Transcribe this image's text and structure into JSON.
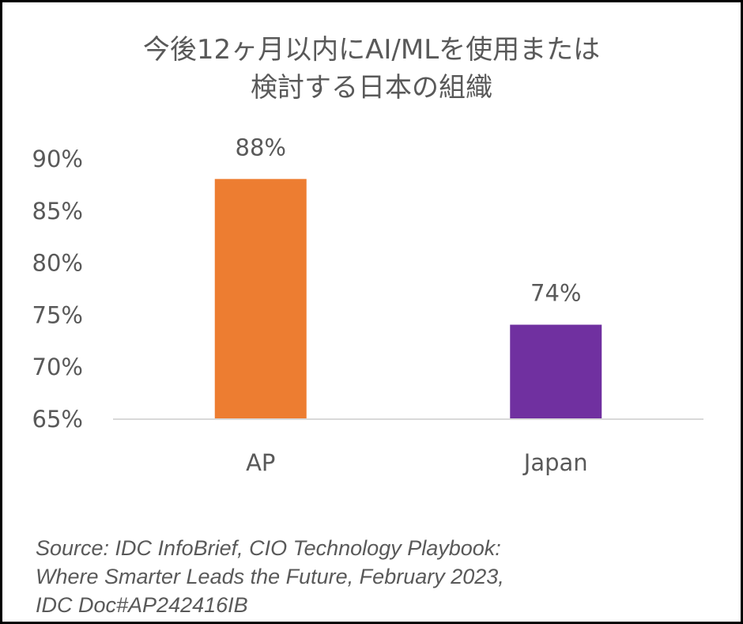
{
  "chart_data": {
    "type": "bar",
    "title_lines": [
      "今後12ヶ月以内にAI/MLを使用または",
      "検討する日本の組織"
    ],
    "categories": [
      "AP",
      "Japan"
    ],
    "values": [
      88,
      74
    ],
    "data_labels": [
      "88%",
      "74%"
    ],
    "colors": [
      "#ED7D31",
      "#7030A0"
    ],
    "ylim": [
      65,
      90
    ],
    "yticks": [
      65,
      70,
      75,
      80,
      85,
      90
    ],
    "ytick_labels": [
      "65%",
      "70%",
      "75%",
      "80%",
      "85%",
      "90%"
    ],
    "grid": false,
    "legend": "none"
  },
  "source_lines": [
    "Source: IDC InfoBrief, CIO Technology Playbook:",
    "Where Smarter Leads the Future, February 2023,",
    "IDC Doc#AP242416IB"
  ]
}
